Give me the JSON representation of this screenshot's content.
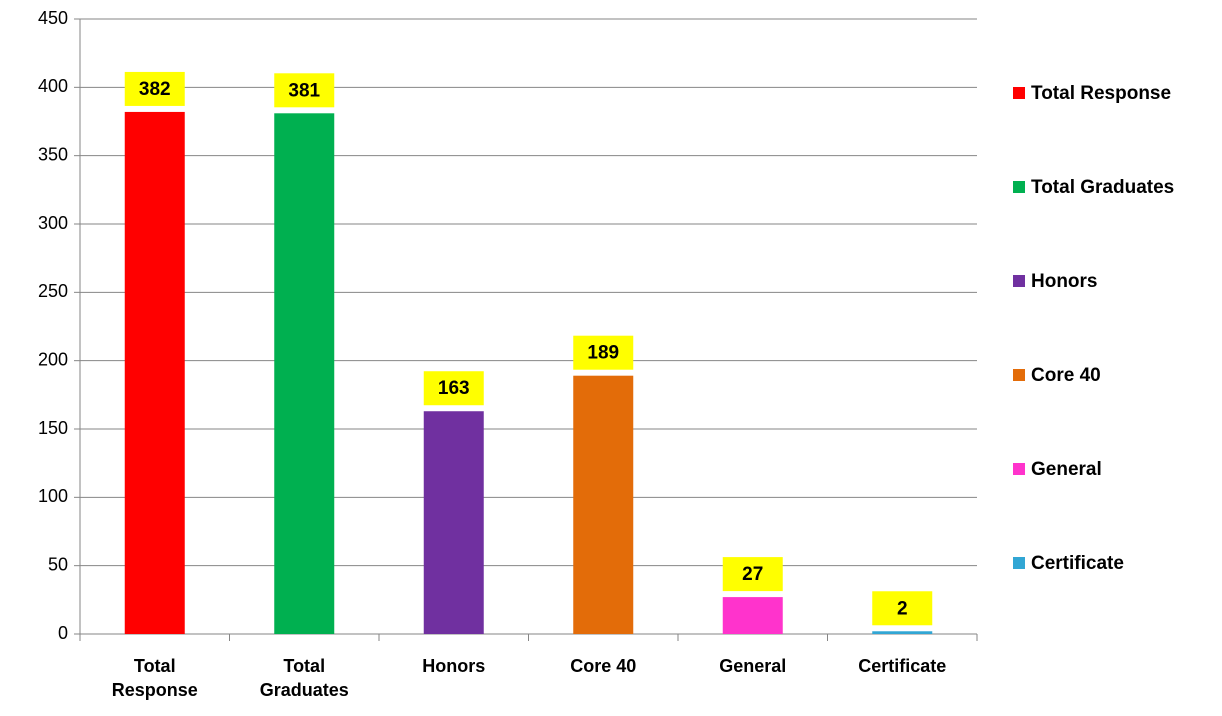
{
  "chart_data": {
    "type": "bar",
    "categories": [
      "Total Response",
      "Total Graduates",
      "Honors",
      "Core 40",
      "General",
      "Certificate"
    ],
    "values": [
      382,
      381,
      163,
      189,
      27,
      2
    ],
    "colors": [
      "#ff0000",
      "#00b050",
      "#7030a0",
      "#e36c09",
      "#ff33cc",
      "#31a6d4"
    ],
    "ylim": [
      0,
      450
    ],
    "yticks": [
      0,
      50,
      100,
      150,
      200,
      250,
      300,
      350,
      400,
      450
    ],
    "grid": true,
    "legend": "right"
  }
}
